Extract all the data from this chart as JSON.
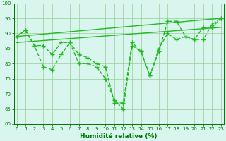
{
  "series": [
    {
      "name": "line_a",
      "x": [
        0,
        1,
        2,
        3,
        4,
        5,
        6,
        7,
        8,
        9,
        10,
        11,
        12,
        13,
        14,
        15,
        16,
        17,
        18,
        19,
        20,
        21,
        22,
        23
      ],
      "y": [
        89,
        91,
        86,
        79,
        78,
        83,
        87,
        80,
        80,
        79,
        75,
        68,
        65,
        86,
        84,
        76,
        85,
        90,
        88,
        89,
        88,
        92,
        92,
        95
      ],
      "color": "#22bb22",
      "linewidth": 1.0,
      "linestyle": "--",
      "marker": "+",
      "markersize": 4,
      "markeredgewidth": 1.0
    },
    {
      "name": "line_b",
      "x": [
        0,
        1,
        2,
        3,
        4,
        5,
        6,
        7,
        8,
        9,
        10,
        11,
        12,
        13,
        14,
        15,
        16,
        17,
        18,
        19,
        20,
        21,
        22,
        23
      ],
      "y": [
        89,
        91,
        86,
        86,
        83,
        87,
        87,
        83,
        82,
        80,
        79,
        67,
        67,
        87,
        84,
        76,
        84,
        94,
        94,
        89,
        88,
        88,
        93,
        95
      ],
      "color": "#22bb22",
      "linewidth": 1.0,
      "linestyle": "--",
      "marker": "+",
      "markersize": 4,
      "markeredgewidth": 1.0
    },
    {
      "name": "trend_low",
      "x": [
        0,
        23
      ],
      "y": [
        87,
        92
      ],
      "color": "#22bb22",
      "linewidth": 1.0,
      "linestyle": "-",
      "marker": null,
      "markersize": 0,
      "markeredgewidth": 0
    },
    {
      "name": "trend_high",
      "x": [
        0,
        23
      ],
      "y": [
        89,
        95
      ],
      "color": "#22bb22",
      "linewidth": 1.0,
      "linestyle": "-",
      "marker": null,
      "markersize": 0,
      "markeredgewidth": 0
    }
  ],
  "xlim": [
    -0.3,
    23.3
  ],
  "ylim": [
    60,
    100
  ],
  "yticks": [
    60,
    65,
    70,
    75,
    80,
    85,
    90,
    95,
    100
  ],
  "xticks": [
    0,
    1,
    2,
    3,
    4,
    5,
    6,
    7,
    8,
    9,
    10,
    11,
    12,
    13,
    14,
    15,
    16,
    17,
    18,
    19,
    20,
    21,
    22,
    23
  ],
  "xlabel": "Humidité relative (%)",
  "xlabel_fontsize": 6.5,
  "xlabel_color": "#007700",
  "tick_color": "#007700",
  "tick_fontsize": 5.0,
  "grid_color": "#99cc99",
  "background_color": "#d8f5ee",
  "spine_color": "#007700"
}
